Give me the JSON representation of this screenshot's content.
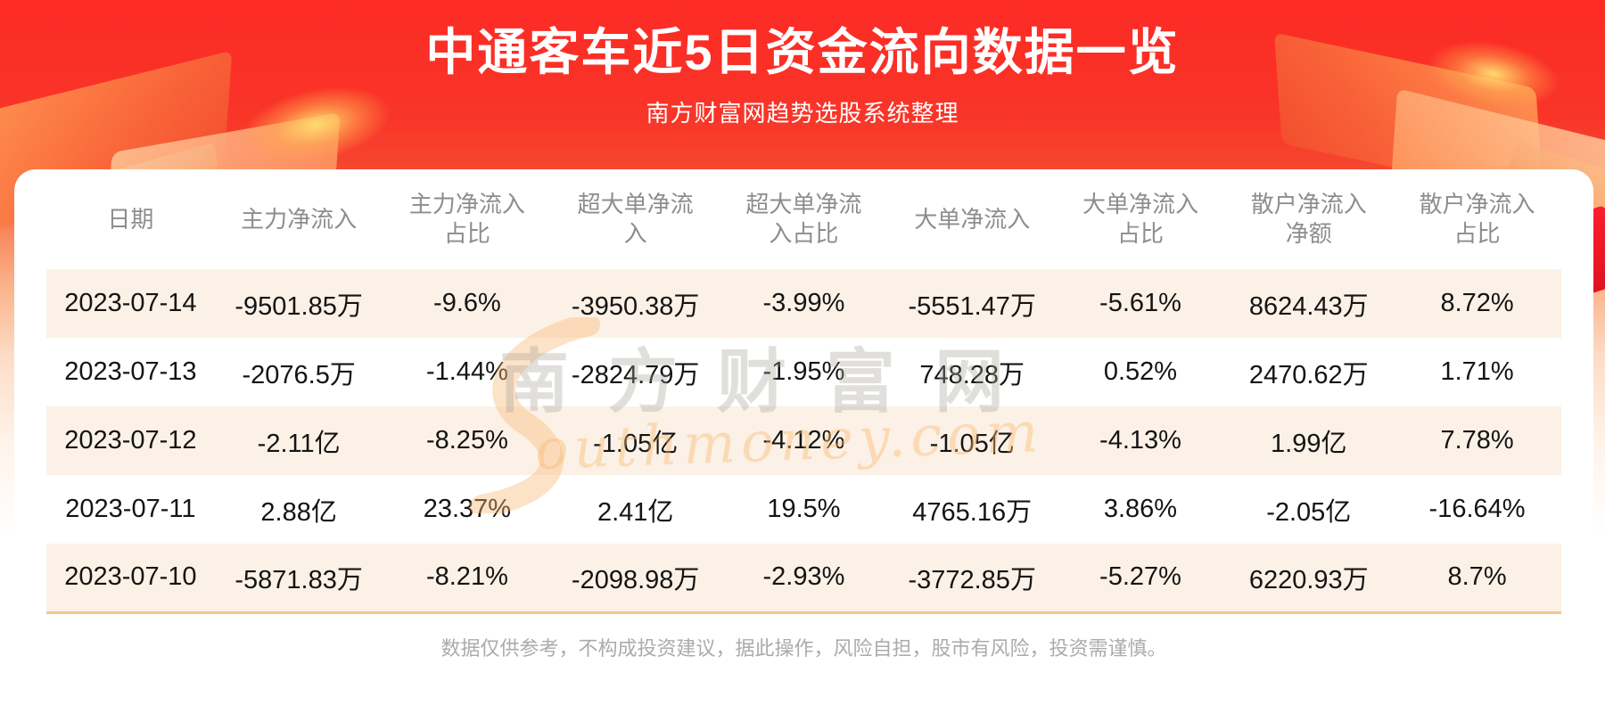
{
  "header": {
    "title": "中通客车近5日资金流向数据一览",
    "subtitle": "南方财富网趋势选股系统整理"
  },
  "chart_data": {
    "type": "table",
    "title": "中通客车近5日资金流向数据一览",
    "columns": [
      "日期",
      "主力净流入",
      "主力净流入占比",
      "超大单净流入",
      "超大单净流入占比",
      "大单净流入",
      "大单净流入占比",
      "散户净流入净额",
      "散户净流入占比"
    ],
    "rows": [
      [
        "2023-07-14",
        "-9501.85万",
        "-9.6%",
        "-3950.38万",
        "-3.99%",
        "-5551.47万",
        "-5.61%",
        "8624.43万",
        "8.72%"
      ],
      [
        "2023-07-13",
        "-2076.5万",
        "-1.44%",
        "-2824.79万",
        "-1.95%",
        "748.28万",
        "0.52%",
        "2470.62万",
        "1.71%"
      ],
      [
        "2023-07-12",
        "-2.11亿",
        "-8.25%",
        "-1.05亿",
        "-4.12%",
        "-1.05亿",
        "-4.13%",
        "1.99亿",
        "7.78%"
      ],
      [
        "2023-07-11",
        "2.88亿",
        "23.37%",
        "2.41亿",
        "19.5%",
        "4765.16万",
        "3.86%",
        "-2.05亿",
        "-16.64%"
      ],
      [
        "2023-07-10",
        "-5871.83万",
        "-8.21%",
        "-2098.98万",
        "-2.93%",
        "-3772.85万",
        "-5.27%",
        "6220.93万",
        "8.7%"
      ]
    ],
    "row_stripe_color": "#fcf1e6",
    "bottom_border_color": "#f6c78b",
    "header_text_color": "#8d8d8d",
    "legend_position": "none",
    "grid": false
  },
  "watermark": {
    "cn": "南方财富网",
    "en": "outhmoney.com"
  },
  "footer": {
    "disclaimer": "数据仅供参考，不构成投资建议，据此操作，风险自担，股市有风险，投资需谨慎。"
  },
  "colors": {
    "banner_red": "#fc2b25",
    "accent_orange": "#f6c78b",
    "card_bg": "#ffffff",
    "title_text": "#ffffff",
    "body_text": "#141414",
    "muted_text": "#ababab"
  }
}
